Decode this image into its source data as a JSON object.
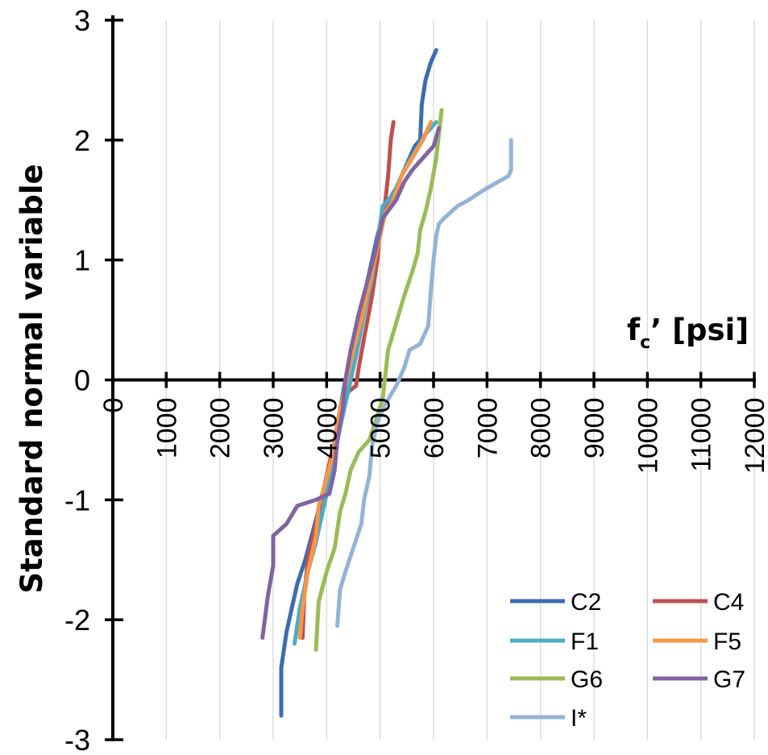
{
  "chart_data": {
    "type": "line",
    "xlabel_main": "f",
    "xlabel_sub": "c",
    "xlabel_rest": "’ [psi]",
    "ylabel": "Standard normal  variable",
    "xlim": [
      0,
      12000
    ],
    "ylim": [
      -3,
      3
    ],
    "x_ticks": [
      0,
      1000,
      2000,
      3000,
      4000,
      5000,
      6000,
      7000,
      8000,
      9000,
      10000,
      11000,
      12000
    ],
    "x_tick_labels": [
      "0",
      "1000",
      "2000",
      "3000",
      "4000",
      "5000",
      "6000",
      "7000",
      "8000",
      "9000",
      "10000",
      "11000",
      "12000"
    ],
    "y_ticks": [
      -3,
      -2,
      -1,
      0,
      1,
      2,
      3
    ],
    "y_tick_labels": [
      "-3",
      "-2",
      "-1",
      "0",
      "1",
      "2",
      "3"
    ],
    "grid": "vertical",
    "legend_position": "bottom-right",
    "series": [
      {
        "name": "C2",
        "color": "#3d6cb0",
        "points": [
          [
            3150,
            -2.8
          ],
          [
            3150,
            -2.4
          ],
          [
            3250,
            -2.1
          ],
          [
            3350,
            -1.9
          ],
          [
            3450,
            -1.7
          ],
          [
            3600,
            -1.5
          ],
          [
            3750,
            -1.25
          ],
          [
            3900,
            -1.0
          ],
          [
            4050,
            -0.75
          ],
          [
            4150,
            -0.5
          ],
          [
            4250,
            -0.25
          ],
          [
            4350,
            0
          ],
          [
            4500,
            0.3
          ],
          [
            4650,
            0.6
          ],
          [
            4800,
            0.9
          ],
          [
            4950,
            1.2
          ],
          [
            5100,
            1.45
          ],
          [
            5300,
            1.6
          ],
          [
            5500,
            1.8
          ],
          [
            5650,
            1.95
          ],
          [
            5750,
            2.0
          ],
          [
            5780,
            2.3
          ],
          [
            5850,
            2.5
          ],
          [
            5950,
            2.65
          ],
          [
            6050,
            2.75
          ]
        ]
      },
      {
        "name": "C4",
        "color": "#c0504d",
        "points": [
          [
            3550,
            -2.15
          ],
          [
            3580,
            -1.8
          ],
          [
            3650,
            -1.5
          ],
          [
            3800,
            -1.2
          ],
          [
            3950,
            -0.9
          ],
          [
            4100,
            -0.6
          ],
          [
            4250,
            -0.35
          ],
          [
            4400,
            -0.1
          ],
          [
            4550,
            -0.05
          ],
          [
            4600,
            0.1
          ],
          [
            4700,
            0.35
          ],
          [
            4850,
            0.7
          ],
          [
            4950,
            1.0
          ],
          [
            5000,
            1.25
          ],
          [
            5100,
            1.5
          ],
          [
            5150,
            1.7
          ],
          [
            5200,
            2.0
          ],
          [
            5250,
            2.15
          ]
        ]
      },
      {
        "name": "F1",
        "color": "#4bacc6",
        "points": [
          [
            3400,
            -2.2
          ],
          [
            3500,
            -1.9
          ],
          [
            3650,
            -1.6
          ],
          [
            3800,
            -1.35
          ],
          [
            3950,
            -1.05
          ],
          [
            4100,
            -0.75
          ],
          [
            4250,
            -0.4
          ],
          [
            4400,
            -0.1
          ],
          [
            4550,
            0.2
          ],
          [
            4700,
            0.55
          ],
          [
            4850,
            0.85
          ],
          [
            4950,
            1.15
          ],
          [
            5050,
            1.45
          ],
          [
            5250,
            1.55
          ],
          [
            5450,
            1.75
          ],
          [
            5650,
            1.9
          ],
          [
            5850,
            2.05
          ],
          [
            6050,
            2.15
          ]
        ]
      },
      {
        "name": "F5",
        "color": "#f79646",
        "points": [
          [
            3500,
            -2.15
          ],
          [
            3550,
            -1.9
          ],
          [
            3650,
            -1.6
          ],
          [
            3800,
            -1.3
          ],
          [
            3850,
            -1.05
          ],
          [
            3950,
            -0.9
          ],
          [
            4100,
            -0.65
          ],
          [
            4200,
            -0.35
          ],
          [
            4350,
            -0.05
          ],
          [
            4500,
            0.25
          ],
          [
            4650,
            0.5
          ],
          [
            4800,
            0.8
          ],
          [
            4950,
            1.1
          ],
          [
            5100,
            1.4
          ],
          [
            5250,
            1.5
          ],
          [
            5400,
            1.7
          ],
          [
            5600,
            1.85
          ],
          [
            5800,
            2.0
          ],
          [
            5950,
            2.15
          ]
        ]
      },
      {
        "name": "G6",
        "color": "#9bbb59",
        "points": [
          [
            3800,
            -2.25
          ],
          [
            3850,
            -1.85
          ],
          [
            4000,
            -1.6
          ],
          [
            4150,
            -1.4
          ],
          [
            4250,
            -1.1
          ],
          [
            4350,
            -0.95
          ],
          [
            4450,
            -0.75
          ],
          [
            4600,
            -0.6
          ],
          [
            4800,
            -0.5
          ],
          [
            4950,
            -0.3
          ],
          [
            5050,
            -0.15
          ],
          [
            5100,
            0.05
          ],
          [
            5150,
            0.25
          ],
          [
            5250,
            0.4
          ],
          [
            5350,
            0.55
          ],
          [
            5450,
            0.7
          ],
          [
            5600,
            0.9
          ],
          [
            5700,
            1.05
          ],
          [
            5750,
            1.25
          ],
          [
            5850,
            1.4
          ],
          [
            5950,
            1.6
          ],
          [
            6050,
            1.85
          ],
          [
            6100,
            2.05
          ],
          [
            6150,
            2.25
          ]
        ]
      },
      {
        "name": "G7",
        "color": "#8064a2",
        "points": [
          [
            2800,
            -2.15
          ],
          [
            2900,
            -1.8
          ],
          [
            3000,
            -1.55
          ],
          [
            3000,
            -1.3
          ],
          [
            3250,
            -1.2
          ],
          [
            3450,
            -1.05
          ],
          [
            3800,
            -1.0
          ],
          [
            4050,
            -0.95
          ],
          [
            4150,
            -0.75
          ],
          [
            4200,
            -0.5
          ],
          [
            4300,
            -0.25
          ],
          [
            4350,
            0
          ],
          [
            4450,
            0.25
          ],
          [
            4600,
            0.55
          ],
          [
            4750,
            0.8
          ],
          [
            4900,
            1.05
          ],
          [
            5050,
            1.35
          ],
          [
            5300,
            1.5
          ],
          [
            5450,
            1.65
          ],
          [
            5600,
            1.75
          ],
          [
            5800,
            1.85
          ],
          [
            6000,
            1.95
          ],
          [
            6100,
            2.1
          ]
        ]
      },
      {
        "name": "I*",
        "color": "#95b3d7",
        "points": [
          [
            4200,
            -2.05
          ],
          [
            4250,
            -1.75
          ],
          [
            4350,
            -1.6
          ],
          [
            4500,
            -1.4
          ],
          [
            4650,
            -1.2
          ],
          [
            4700,
            -1.0
          ],
          [
            4800,
            -0.8
          ],
          [
            4850,
            -0.55
          ],
          [
            4950,
            -0.35
          ],
          [
            5100,
            -0.2
          ],
          [
            5300,
            -0.05
          ],
          [
            5450,
            0.1
          ],
          [
            5550,
            0.25
          ],
          [
            5750,
            0.3
          ],
          [
            5900,
            0.45
          ],
          [
            5950,
            0.75
          ],
          [
            6000,
            1.0
          ],
          [
            6050,
            1.2
          ],
          [
            6100,
            1.3
          ],
          [
            6200,
            1.35
          ],
          [
            6450,
            1.45
          ],
          [
            6650,
            1.5
          ],
          [
            7000,
            1.6
          ],
          [
            7400,
            1.7
          ],
          [
            7450,
            1.75
          ],
          [
            7450,
            2.0
          ]
        ]
      }
    ]
  }
}
